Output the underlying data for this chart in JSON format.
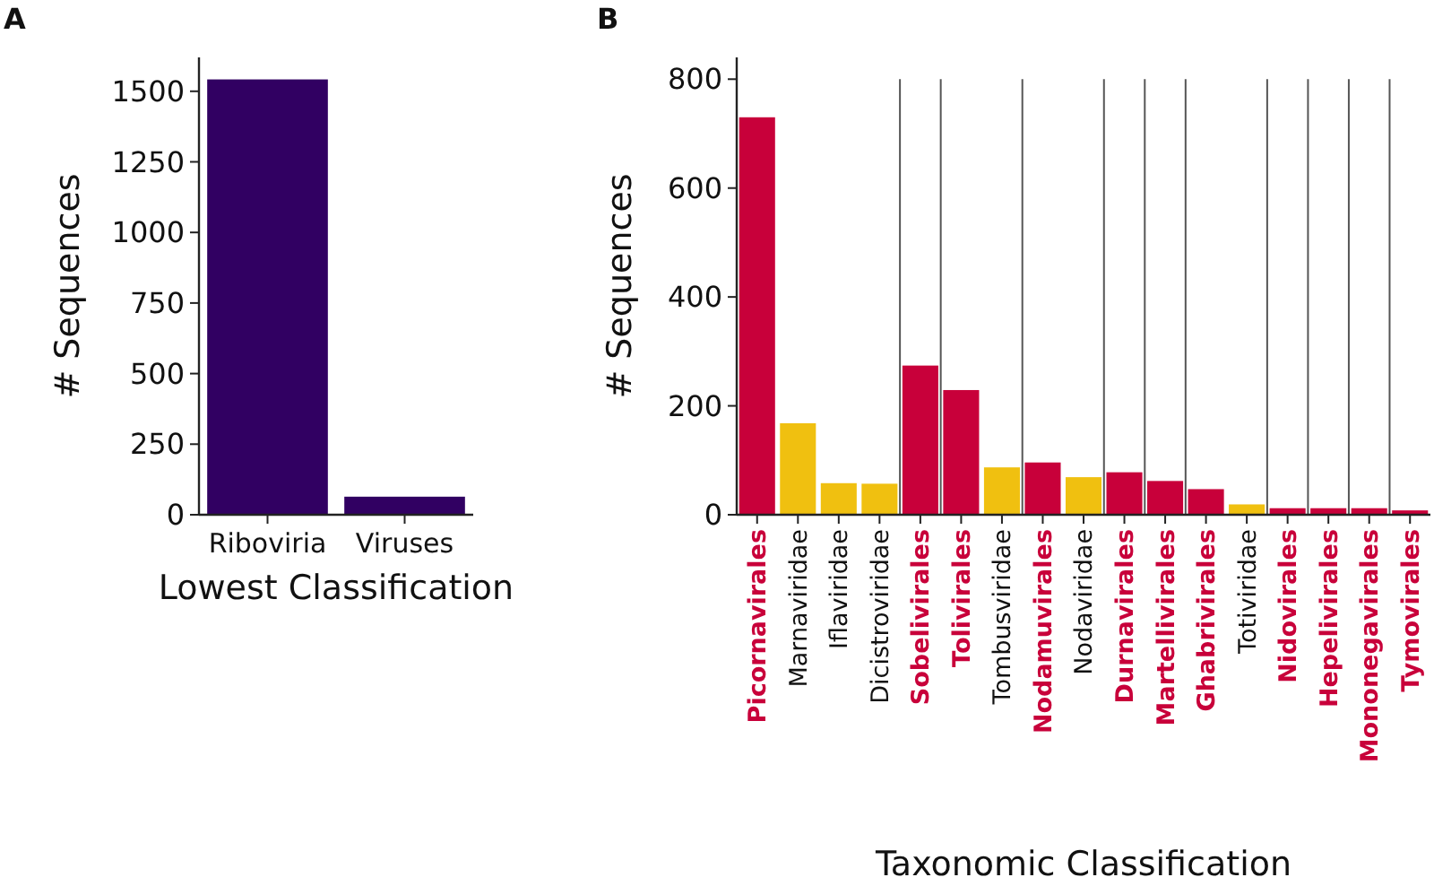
{
  "chart_data": [
    {
      "type": "bar",
      "title": "A",
      "xlabel": "Lowest Classification",
      "ylabel": "# Sequences",
      "categories": [
        "Riboviria",
        "Viruses"
      ],
      "values": [
        1542,
        64
      ],
      "color": "#310062",
      "ylim": [
        0,
        1620
      ],
      "yticks": [
        0,
        250,
        500,
        750,
        1000,
        1250,
        1500
      ],
      "grid": false
    },
    {
      "type": "bar",
      "title": "B",
      "xlabel": "Taxonomic Classification",
      "ylabel": "# Sequences",
      "categories": [
        "Picornavirales",
        "Marnaviridae",
        "Iflaviridae",
        "Dicistroviridae",
        "Sobelivirales",
        "Tolivirales",
        "Tombusviridae",
        "Nodamuvirales",
        "Nodaviridae",
        "Durnavirales",
        "Martellivirales",
        "Ghabrivirales",
        "Totiviridae",
        "Nidovirales",
        "Hepelivirales",
        "Mononegavirales",
        "Tymovirales"
      ],
      "values": [
        730,
        168,
        58,
        57,
        274,
        229,
        87,
        96,
        69,
        78,
        62,
        47,
        19,
        12,
        12,
        12,
        8
      ],
      "colors": [
        "#c8003a",
        "#f0c010",
        "#f0c010",
        "#f0c010",
        "#c8003a",
        "#c8003a",
        "#f0c010",
        "#c8003a",
        "#f0c010",
        "#c8003a",
        "#c8003a",
        "#c8003a",
        "#f0c010",
        "#c8003a",
        "#c8003a",
        "#c8003a",
        "#c8003a"
      ],
      "ylim": [
        0,
        840
      ],
      "yticks": [
        0,
        200,
        400,
        600,
        800
      ],
      "grid": false
    }
  ]
}
